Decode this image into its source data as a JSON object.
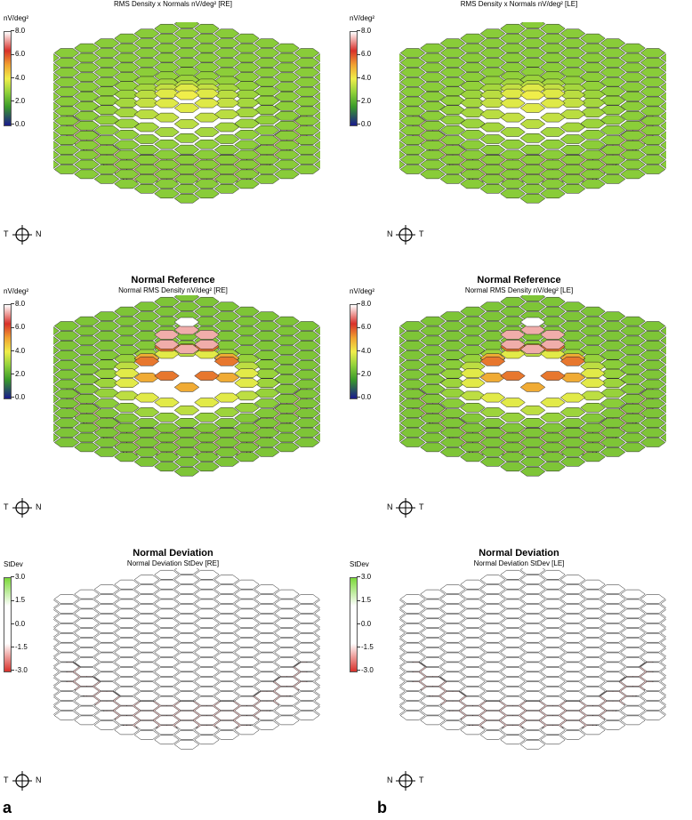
{
  "panels": [
    {
      "id": "re-density",
      "title": "",
      "subtitle": "RMS Density x Normals nV/deg² [RE]",
      "scale_unit": "nV/deg²",
      "ticks": [
        "8.0",
        "6.0",
        "4.0",
        "2.0",
        "0.0"
      ],
      "scale_type": "density",
      "surface": "flat-green",
      "compass_left": "T",
      "compass_right": "N"
    },
    {
      "id": "le-density",
      "title": "",
      "subtitle": "RMS Density x Normals nV/deg² [LE]",
      "scale_unit": "nV/deg²",
      "ticks": [
        "8.0",
        "6.0",
        "4.0",
        "2.0",
        "0.0"
      ],
      "scale_type": "density",
      "surface": "flat-green",
      "compass_left": "N",
      "compass_right": "T"
    },
    {
      "id": "re-normal",
      "title": "Normal Reference",
      "subtitle": "Normal RMS Density nV/deg² [RE]",
      "scale_unit": "nV/deg²",
      "ticks": [
        "8.0",
        "6.0",
        "4.0",
        "2.0",
        "0.0"
      ],
      "scale_type": "density",
      "surface": "peak",
      "compass_left": "T",
      "compass_right": "N"
    },
    {
      "id": "le-normal",
      "title": "Normal Reference",
      "subtitle": "Normal RMS Density nV/deg² [LE]",
      "scale_unit": "nV/deg²",
      "ticks": [
        "8.0",
        "6.0",
        "4.0",
        "2.0",
        "0.0"
      ],
      "scale_type": "density",
      "surface": "peak",
      "compass_left": "N",
      "compass_right": "T"
    },
    {
      "id": "re-deviation",
      "title": "Normal Deviation",
      "subtitle": "Normal Deviation StDev [RE]",
      "scale_unit": "StDev",
      "ticks": [
        "3.0",
        "1.5",
        "0.0",
        "-1.5",
        "-3.0"
      ],
      "scale_type": "stdev",
      "surface": "white",
      "compass_left": "T",
      "compass_right": "N"
    },
    {
      "id": "le-deviation",
      "title": "Normal Deviation",
      "subtitle": "Normal Deviation StDev [LE]",
      "scale_unit": "StDev",
      "ticks": [
        "3.0",
        "1.5",
        "0.0",
        "-1.5",
        "-3.0"
      ],
      "scale_type": "stdev",
      "surface": "white",
      "compass_left": "N",
      "compass_right": "T"
    }
  ],
  "labels": {
    "a": "a",
    "b": "b"
  },
  "colors": {
    "side": "#f2cccc",
    "stroke": "#333333",
    "green": "#7cc43a",
    "yellow": "#f0ee4a",
    "red": "#d8302a"
  }
}
